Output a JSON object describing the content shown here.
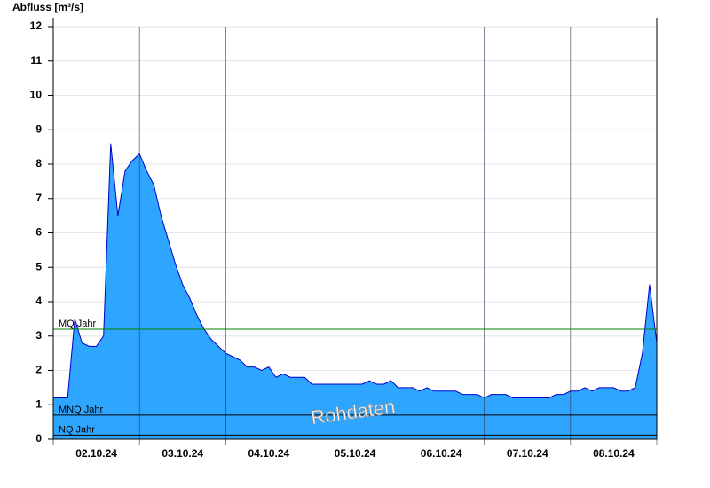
{
  "chart_data": {
    "type": "area",
    "y_label": "Abfluss [m³/s]",
    "watermark": "Rohdaten",
    "ylim": [
      0,
      12
    ],
    "yticks": [
      0,
      1,
      2,
      3,
      4,
      5,
      6,
      7,
      8,
      9,
      10,
      11,
      12
    ],
    "grid": true,
    "categories": [
      null,
      null,
      null,
      null,
      null,
      null,
      "02.10.24",
      null,
      null,
      null,
      null,
      null,
      null,
      null,
      null,
      null,
      null,
      null,
      "03.10.24",
      null,
      null,
      null,
      null,
      null,
      null,
      null,
      null,
      null,
      null,
      null,
      "04.10.24",
      null,
      null,
      null,
      null,
      null,
      null,
      null,
      null,
      null,
      null,
      null,
      "05.10.24",
      null,
      null,
      null,
      null,
      null,
      null,
      null,
      null,
      null,
      null,
      null,
      "06.10.24",
      null,
      null,
      null,
      null,
      null,
      null,
      null,
      null,
      null,
      null,
      null,
      "07.10.24",
      null,
      null,
      null,
      null,
      null,
      null,
      null,
      null,
      null,
      null,
      null,
      "08.10.24",
      null,
      null,
      null,
      null,
      null,
      null
    ],
    "series": [
      {
        "color": "#2ea6ff",
        "values": [
          1.2,
          1.2,
          1.2,
          3.5,
          2.8,
          2.7,
          2.7,
          3.0,
          8.6,
          6.5,
          7.8,
          8.1,
          8.3,
          7.8,
          7.4,
          6.5,
          5.8,
          5.1,
          4.5,
          4.1,
          3.6,
          3.2,
          2.9,
          2.7,
          2.5,
          2.4,
          2.3,
          2.1,
          2.1,
          2.0,
          2.1,
          1.8,
          1.9,
          1.8,
          1.8,
          1.8,
          1.6,
          1.6,
          1.6,
          1.6,
          1.6,
          1.6,
          1.6,
          1.6,
          1.7,
          1.6,
          1.6,
          1.7,
          1.5,
          1.5,
          1.5,
          1.4,
          1.5,
          1.4,
          1.4,
          1.4,
          1.4,
          1.3,
          1.3,
          1.3,
          1.2,
          1.3,
          1.3,
          1.3,
          1.2,
          1.2,
          1.2,
          1.2,
          1.2,
          1.2,
          1.3,
          1.3,
          1.4,
          1.4,
          1.5,
          1.4,
          1.5,
          1.5,
          1.5,
          1.4,
          1.4,
          1.5,
          2.5,
          4.5,
          2.8
        ]
      }
    ],
    "reference_lines": [
      {
        "name": "MQ Jahr",
        "value": 3.2,
        "color": "#008000"
      },
      {
        "name": "MNQ Jahr",
        "value": 0.7,
        "color": "#000000"
      },
      {
        "name": "NQ Jahr",
        "value": 0.12,
        "color": "#000000"
      }
    ]
  }
}
